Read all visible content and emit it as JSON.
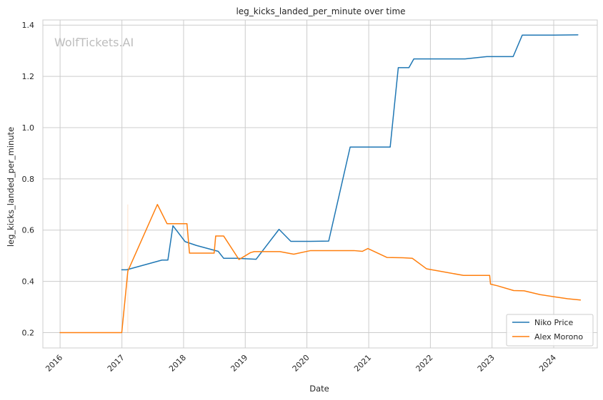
{
  "chart_data": {
    "type": "line",
    "title": "leg_kicks_landed_per_minute over time",
    "xlabel": "Date",
    "ylabel": "leg_kicks_landed_per_minute",
    "watermark": "WolfTickets.AI",
    "xlim": [
      "2015-09-21",
      "2024-09-15"
    ],
    "ylim": [
      0.14,
      1.42
    ],
    "x_ticks": [
      "2016-01-01",
      "2017-01-01",
      "2018-01-01",
      "2019-01-01",
      "2020-01-01",
      "2021-01-01",
      "2022-01-01",
      "2023-01-01",
      "2024-01-01"
    ],
    "x_tick_labels": [
      "2016",
      "2017",
      "2018",
      "2019",
      "2020",
      "2021",
      "2022",
      "2023",
      "2024"
    ],
    "y_ticks": [
      0.2,
      0.4,
      0.6,
      0.8,
      1.0,
      1.2,
      1.4
    ],
    "y_tick_labels": [
      "0.2",
      "0.4",
      "0.6",
      "0.8",
      "1.0",
      "1.2",
      "1.4"
    ],
    "grid": true,
    "legend_position": "lower-right",
    "series": [
      {
        "name": "Niko Price",
        "color": "#1f77b4",
        "points": [
          [
            "2016-12-31",
            0.445
          ],
          [
            "2017-01-29",
            0.445
          ],
          [
            "2017-08-26",
            0.483
          ],
          [
            "2017-09-30",
            0.483
          ],
          [
            "2017-10-30",
            0.617
          ],
          [
            "2018-01-10",
            0.555
          ],
          [
            "2018-03-18",
            0.54
          ],
          [
            "2018-07-25",
            0.517
          ],
          [
            "2018-08-26",
            0.49
          ],
          [
            "2018-11-12",
            0.49
          ],
          [
            "2019-03-06",
            0.486
          ],
          [
            "2019-07-20",
            0.603
          ],
          [
            "2019-09-28",
            0.556
          ],
          [
            "2020-01-20",
            0.556
          ],
          [
            "2020-05-09",
            0.557
          ],
          [
            "2020-09-13",
            0.924
          ],
          [
            "2021-01-01",
            0.924
          ],
          [
            "2021-05-08",
            0.924
          ],
          [
            "2021-06-25",
            1.234
          ],
          [
            "2021-08-27",
            1.234
          ],
          [
            "2021-09-25",
            1.268
          ],
          [
            "2022-01-01",
            1.268
          ],
          [
            "2022-07-25",
            1.268
          ],
          [
            "2022-12-01",
            1.277
          ],
          [
            "2023-05-06",
            1.277
          ],
          [
            "2023-06-29",
            1.361
          ],
          [
            "2024-01-01",
            1.361
          ],
          [
            "2024-05-23",
            1.362
          ]
        ]
      },
      {
        "name": "Alex Morono",
        "color": "#ff7f0e",
        "points": [
          [
            "2016-01-01",
            0.2
          ],
          [
            "2016-12-31",
            0.2
          ],
          [
            "2017-02-05",
            0.44
          ],
          [
            "2017-07-30",
            0.7
          ],
          [
            "2017-09-25",
            0.625
          ],
          [
            "2018-01-01",
            0.625
          ],
          [
            "2018-01-21",
            0.625
          ],
          [
            "2018-02-05",
            0.51
          ],
          [
            "2018-07-01",
            0.51
          ],
          [
            "2018-07-10",
            0.577
          ],
          [
            "2018-08-26",
            0.577
          ],
          [
            "2018-11-25",
            0.485
          ],
          [
            "2019-02-01",
            0.512
          ],
          [
            "2019-02-23",
            0.516
          ],
          [
            "2019-07-25",
            0.516
          ],
          [
            "2019-10-15",
            0.506
          ],
          [
            "2020-01-23",
            0.52
          ],
          [
            "2020-08-01",
            0.52
          ],
          [
            "2020-10-06",
            0.52
          ],
          [
            "2020-11-24",
            0.517
          ],
          [
            "2020-12-27",
            0.528
          ],
          [
            "2021-04-20",
            0.493
          ],
          [
            "2021-07-22",
            0.492
          ],
          [
            "2021-09-16",
            0.49
          ],
          [
            "2021-12-09",
            0.449
          ],
          [
            "2022-07-16",
            0.423
          ],
          [
            "2022-12-18",
            0.423
          ],
          [
            "2022-12-23",
            0.389
          ],
          [
            "2023-01-31",
            0.383
          ],
          [
            "2023-05-09",
            0.364
          ],
          [
            "2023-07-10",
            0.363
          ],
          [
            "2023-10-13",
            0.348
          ],
          [
            "2024-01-01",
            0.34
          ],
          [
            "2024-03-24",
            0.332
          ],
          [
            "2024-06-07",
            0.327
          ]
        ]
      }
    ]
  }
}
